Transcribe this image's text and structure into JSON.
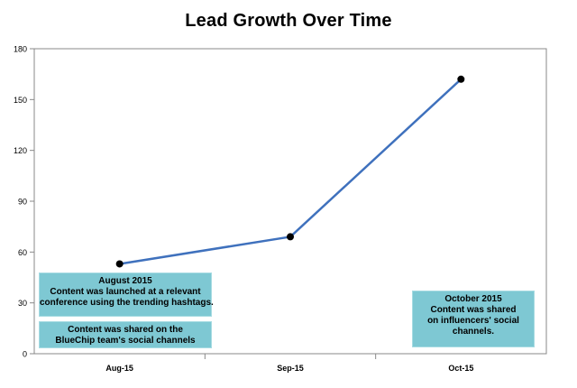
{
  "chart_data": {
    "type": "line",
    "title": "Lead Growth Over Time",
    "xlabel": "",
    "ylabel": "",
    "categories": [
      "Aug-15",
      "Sep-15",
      "Oct-15"
    ],
    "series": [
      {
        "values": [
          53,
          69,
          162
        ]
      }
    ],
    "ylim": [
      0,
      180
    ],
    "yticks": [
      0,
      30,
      60,
      90,
      120,
      150,
      180
    ],
    "grid": false,
    "line_color": "#3f71bd",
    "marker_color": "#000000",
    "annotations": [
      {
        "lines": [
          "August 2015",
          "Content was launched at a relevant",
          "conference using the trending hashtags."
        ]
      },
      {
        "lines": [
          "Content was shared on the",
          "BlueChip team's social channels"
        ]
      },
      {
        "lines": [
          "October 2015",
          "Content was shared",
          "on influencers' social",
          "channels."
        ]
      }
    ]
  }
}
